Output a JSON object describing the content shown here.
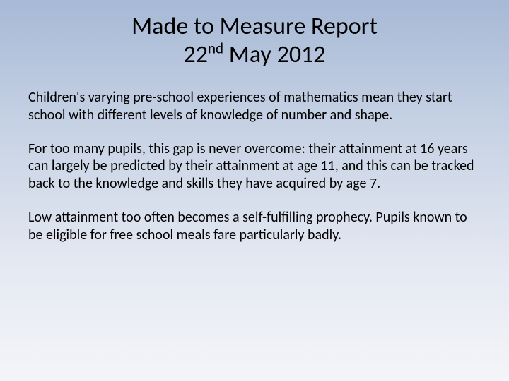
{
  "background": {
    "gradient_top": "#a7b9d6",
    "gradient_mid1": "#c8d3e5",
    "gradient_mid2": "#e5e9f2",
    "gradient_bottom": "#f4f5f8"
  },
  "title": {
    "line1": "Made to Measure Report",
    "date_day": "22",
    "date_ordinal": "nd",
    "date_rest": " May 2012",
    "fontsize": 34,
    "color": "#000000"
  },
  "body": {
    "fontsize": 20,
    "color": "#000000",
    "paragraphs": [
      "Children's varying pre-school experiences of mathematics mean they start school with different levels of knowledge of number and shape.",
      "For too many pupils, this gap is never overcome: their attainment at 16 years can largely be predicted by their attainment at age 11, and this can be tracked back to the knowledge and skills they have acquired by age 7.",
      "Low attainment too often becomes a self-fulfilling prophecy. Pupils known to be eligible for free school meals fare particularly badly."
    ]
  }
}
